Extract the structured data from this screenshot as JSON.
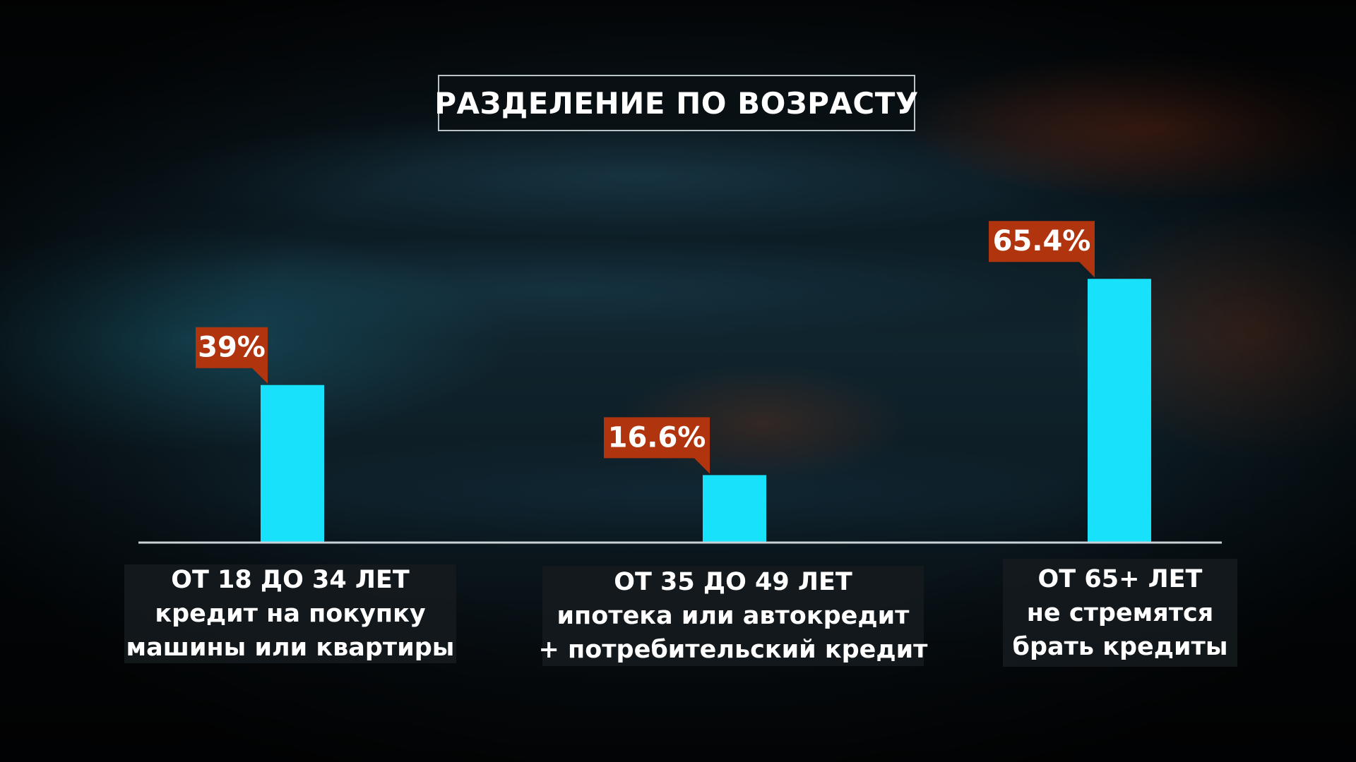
{
  "title": "РАЗДЕЛЕНИЕ ПО ВОЗРАСТУ",
  "colors": {
    "bar": "#17e1fb",
    "label_bg": "#b0340e",
    "axis": "#c8d2d6",
    "category_bg": "#141a1e"
  },
  "chart_data": {
    "type": "bar",
    "title": "РАЗДЕЛЕНИЕ ПО ВОЗРАСТУ",
    "xlabel": "",
    "ylabel": "",
    "ylim": [
      0,
      100
    ],
    "grid": false,
    "categories": [
      [
        "ОТ 18 ДО 34 ЛЕТ",
        "кредит на покупку",
        "машины или квартиры"
      ],
      [
        "ОТ 35 ДО 49 ЛЕТ",
        "ипотека или автокредит",
        "+ потребительский кредит"
      ],
      [
        "ОТ 65+ ЛЕТ",
        "не стремятся",
        "брать кредиты"
      ]
    ],
    "values": [
      39,
      16.6,
      65.4
    ],
    "value_labels": [
      "39%",
      "16.6%",
      "65.4%"
    ]
  }
}
